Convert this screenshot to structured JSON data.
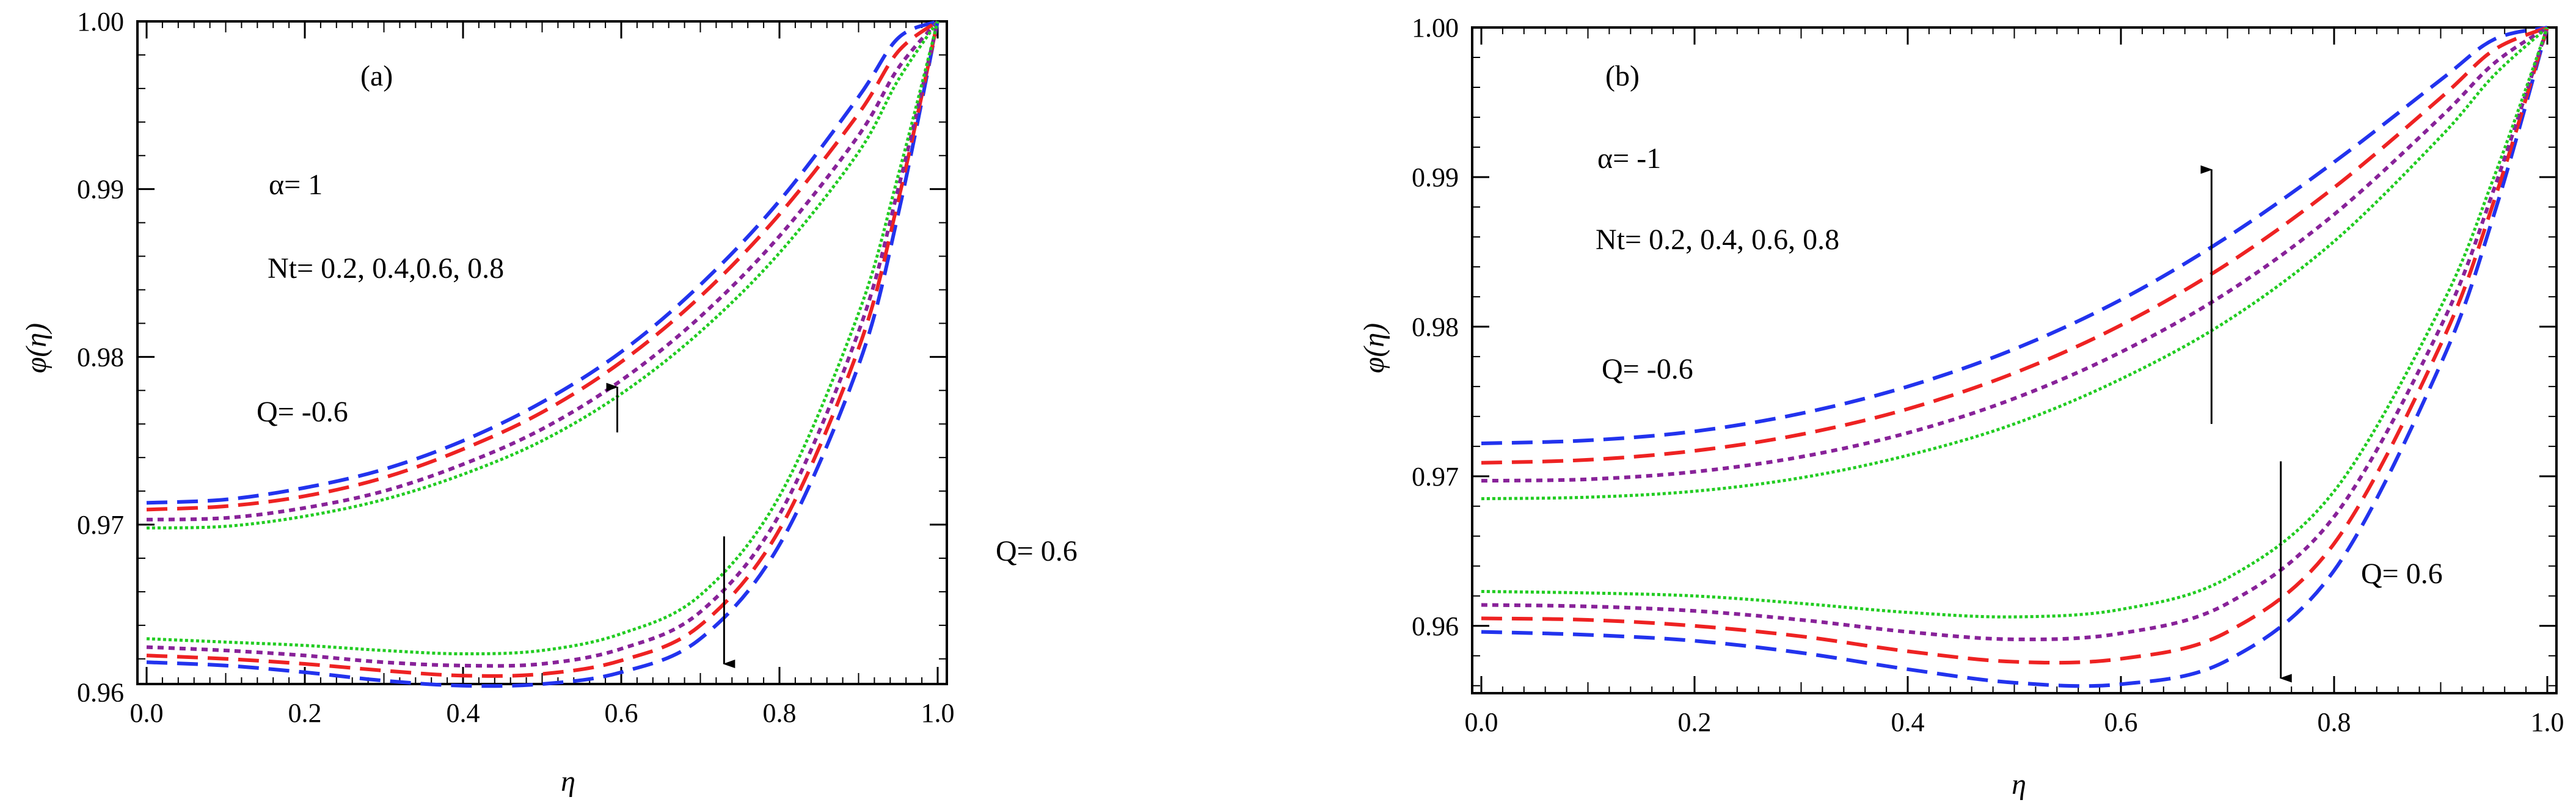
{
  "chart_data": [
    {
      "type": "line",
      "title": "(a)",
      "xlabel": "η",
      "ylabel": "φ(η)",
      "xlim": [
        0.0,
        1.0
      ],
      "ylim": [
        0.9605,
        1.0
      ],
      "xticks": [
        0.0,
        0.2,
        0.4,
        0.6,
        0.8,
        1.0
      ],
      "xtick_labels": [
        "0.0",
        "0.2",
        "0.4",
        "0.6",
        "0.8",
        "1.0"
      ],
      "yticks": [
        0.96,
        0.97,
        0.98,
        0.99,
        1.0
      ],
      "ytick_labels": [
        "0.96",
        "0.97",
        "0.98",
        "0.99",
        "1.00"
      ],
      "annotations": {
        "alpha": "α= 1",
        "nt": "Nt= 0.2, 0.4,0.6, 0.8",
        "q_neg": "Q= -0.6",
        "q_pos": "Q= 0.6"
      },
      "arrows": [
        {
          "x": 0.595,
          "from": 0.9755,
          "to": 0.9782
        },
        {
          "x": 0.73,
          "from": 0.9693,
          "to": 0.9617
        }
      ],
      "series": [
        {
          "group": "Q= -0.6",
          "nt": 0.2,
          "color": "#2233ee",
          "dash": "dash",
          "x": [
            0,
            0.1,
            0.2,
            0.3,
            0.4,
            0.5,
            0.6,
            0.7,
            0.8,
            0.9,
            0.95,
            1.0
          ],
          "y": [
            0.9713,
            0.9715,
            0.9722,
            0.9733,
            0.975,
            0.9773,
            0.9803,
            0.9843,
            0.9893,
            0.9955,
            0.999,
            1.0
          ]
        },
        {
          "group": "Q= -0.6",
          "nt": 0.4,
          "color": "#ee2222",
          "dash": "dash",
          "x": [
            0,
            0.1,
            0.2,
            0.3,
            0.4,
            0.5,
            0.6,
            0.7,
            0.8,
            0.9,
            0.95,
            1.0
          ],
          "y": [
            0.9709,
            0.9711,
            0.9717,
            0.9728,
            0.9745,
            0.9767,
            0.9797,
            0.9836,
            0.9885,
            0.9945,
            0.9982,
            1.0
          ]
        },
        {
          "group": "Q= -0.6",
          "nt": 0.6,
          "color": "#882299",
          "dash": "dot",
          "x": [
            0,
            0.1,
            0.2,
            0.3,
            0.4,
            0.5,
            0.6,
            0.7,
            0.8,
            0.9,
            0.95,
            1.0
          ],
          "y": [
            0.9703,
            0.9704,
            0.971,
            0.972,
            0.9736,
            0.9757,
            0.9786,
            0.9824,
            0.9872,
            0.9932,
            0.9972,
            1.0
          ]
        },
        {
          "group": "Q= -0.6",
          "nt": 0.8,
          "color": "#22cc22",
          "dash": "fine",
          "x": [
            0,
            0.1,
            0.2,
            0.3,
            0.4,
            0.5,
            0.6,
            0.7,
            0.8,
            0.9,
            0.95,
            1.0
          ],
          "y": [
            0.9698,
            0.9699,
            0.9705,
            0.9715,
            0.973,
            0.975,
            0.9778,
            0.9815,
            0.9862,
            0.9922,
            0.9965,
            1.0
          ]
        },
        {
          "group": "Q= 0.6",
          "nt": 0.2,
          "color": "#2233ee",
          "dash": "dash",
          "x": [
            0,
            0.1,
            0.2,
            0.3,
            0.4,
            0.5,
            0.6,
            0.7,
            0.8,
            0.9,
            0.95,
            1.0
          ],
          "y": [
            0.9618,
            0.9616,
            0.9612,
            0.9607,
            0.9604,
            0.9605,
            0.9612,
            0.9632,
            0.9688,
            0.9795,
            0.9885,
            1.0
          ]
        },
        {
          "group": "Q= 0.6",
          "nt": 0.4,
          "color": "#ee2222",
          "dash": "dash",
          "x": [
            0,
            0.1,
            0.2,
            0.3,
            0.4,
            0.5,
            0.6,
            0.7,
            0.8,
            0.9,
            0.95,
            1.0
          ],
          "y": [
            0.9622,
            0.962,
            0.9617,
            0.9613,
            0.961,
            0.9611,
            0.9619,
            0.964,
            0.9697,
            0.9805,
            0.9893,
            1.0
          ]
        },
        {
          "group": "Q= 0.6",
          "nt": 0.6,
          "color": "#882299",
          "dash": "dot",
          "x": [
            0,
            0.1,
            0.2,
            0.3,
            0.4,
            0.5,
            0.6,
            0.7,
            0.8,
            0.9,
            0.95,
            1.0
          ],
          "y": [
            0.9627,
            0.9625,
            0.9622,
            0.9618,
            0.9616,
            0.9617,
            0.9626,
            0.9648,
            0.9706,
            0.9815,
            0.99,
            1.0
          ]
        },
        {
          "group": "Q= 0.6",
          "nt": 0.8,
          "color": "#22cc22",
          "dash": "fine",
          "x": [
            0,
            0.1,
            0.2,
            0.3,
            0.4,
            0.5,
            0.6,
            0.7,
            0.8,
            0.9,
            0.95,
            1.0
          ],
          "y": [
            0.9632,
            0.963,
            0.9628,
            0.9625,
            0.9623,
            0.9625,
            0.9635,
            0.9658,
            0.9717,
            0.9826,
            0.9908,
            1.0
          ]
        }
      ]
    },
    {
      "type": "line",
      "title": "(b)",
      "xlabel": "η",
      "ylabel": "φ(η)",
      "xlim": [
        0.0,
        1.0
      ],
      "ylim": [
        0.9555,
        1.0
      ],
      "xticks": [
        0.0,
        0.2,
        0.4,
        0.6,
        0.8,
        1.0
      ],
      "xtick_labels": [
        "0.0",
        "0.2",
        "0.4",
        "0.6",
        "0.8",
        "1.0"
      ],
      "yticks": [
        0.96,
        0.97,
        0.98,
        0.99,
        1.0
      ],
      "ytick_labels": [
        "0.96",
        "0.97",
        "0.98",
        "0.99",
        "1.00"
      ],
      "annotations": {
        "alpha": "α= -1",
        "nt": "Nt= 0.2, 0.4, 0.6, 0.8",
        "q_neg": "Q= -0.6",
        "q_pos": "Q= 0.6"
      },
      "arrows": [
        {
          "x": 0.685,
          "from": 0.9735,
          "to": 0.9905
        },
        {
          "x": 0.75,
          "from": 0.971,
          "to": 0.9565
        }
      ],
      "series": [
        {
          "group": "Q= -0.6",
          "nt": 0.2,
          "color": "#2233ee",
          "dash": "dash",
          "x": [
            0,
            0.1,
            0.2,
            0.3,
            0.4,
            0.5,
            0.6,
            0.7,
            0.8,
            0.9,
            0.95,
            1.0
          ],
          "y": [
            0.9722,
            0.9724,
            0.973,
            0.9742,
            0.976,
            0.9785,
            0.9818,
            0.986,
            0.991,
            0.9965,
            0.9992,
            1.0
          ]
        },
        {
          "group": "Q= -0.6",
          "nt": 0.4,
          "color": "#ee2222",
          "dash": "dash",
          "x": [
            0,
            0.1,
            0.2,
            0.3,
            0.4,
            0.5,
            0.6,
            0.7,
            0.8,
            0.9,
            0.95,
            1.0
          ],
          "y": [
            0.9709,
            0.9711,
            0.9717,
            0.9728,
            0.9745,
            0.9769,
            0.9801,
            0.9842,
            0.9893,
            0.9953,
            0.9985,
            1.0
          ]
        },
        {
          "group": "Q= -0.6",
          "nt": 0.6,
          "color": "#882299",
          "dash": "dot",
          "x": [
            0,
            0.1,
            0.2,
            0.3,
            0.4,
            0.5,
            0.6,
            0.7,
            0.8,
            0.9,
            0.95,
            1.0
          ],
          "y": [
            0.9697,
            0.9698,
            0.9703,
            0.9713,
            0.9729,
            0.9752,
            0.9783,
            0.9823,
            0.9875,
            0.994,
            0.9976,
            1.0
          ]
        },
        {
          "group": "Q= -0.6",
          "nt": 0.8,
          "color": "#22cc22",
          "dash": "fine",
          "x": [
            0,
            0.1,
            0.2,
            0.3,
            0.4,
            0.5,
            0.6,
            0.7,
            0.8,
            0.9,
            0.95,
            1.0
          ],
          "y": [
            0.9685,
            0.9686,
            0.969,
            0.9699,
            0.9714,
            0.9735,
            0.9765,
            0.9804,
            0.9857,
            0.9927,
            0.9968,
            1.0
          ]
        },
        {
          "group": "Q= 0.6",
          "nt": 0.2,
          "color": "#2233ee",
          "dash": "dash",
          "x": [
            0,
            0.1,
            0.2,
            0.3,
            0.4,
            0.5,
            0.6,
            0.7,
            0.8,
            0.9,
            0.95,
            1.0
          ],
          "y": [
            0.9596,
            0.9594,
            0.959,
            0.9582,
            0.9571,
            0.9562,
            0.9561,
            0.9577,
            0.9637,
            0.9775,
            0.9875,
            1.0
          ]
        },
        {
          "group": "Q= 0.6",
          "nt": 0.4,
          "color": "#ee2222",
          "dash": "dash",
          "x": [
            0,
            0.1,
            0.2,
            0.3,
            0.4,
            0.5,
            0.6,
            0.7,
            0.8,
            0.9,
            0.95,
            1.0
          ],
          "y": [
            0.9605,
            0.9604,
            0.96,
            0.9593,
            0.9583,
            0.9576,
            0.9578,
            0.9596,
            0.9655,
            0.9788,
            0.9884,
            1.0
          ]
        },
        {
          "group": "Q= 0.6",
          "nt": 0.6,
          "color": "#882299",
          "dash": "dot",
          "x": [
            0,
            0.1,
            0.2,
            0.3,
            0.4,
            0.5,
            0.6,
            0.7,
            0.8,
            0.9,
            0.95,
            1.0
          ],
          "y": [
            0.9614,
            0.9613,
            0.961,
            0.9604,
            0.9596,
            0.9591,
            0.9595,
            0.9615,
            0.9673,
            0.98,
            0.9892,
            1.0
          ]
        },
        {
          "group": "Q= 0.6",
          "nt": 0.8,
          "color": "#22cc22",
          "dash": "fine",
          "x": [
            0,
            0.1,
            0.2,
            0.3,
            0.4,
            0.5,
            0.6,
            0.7,
            0.8,
            0.9,
            0.95,
            1.0
          ],
          "y": [
            0.9623,
            0.9622,
            0.962,
            0.9615,
            0.9609,
            0.9606,
            0.9611,
            0.9632,
            0.969,
            0.9813,
            0.99,
            1.0
          ]
        }
      ]
    }
  ]
}
